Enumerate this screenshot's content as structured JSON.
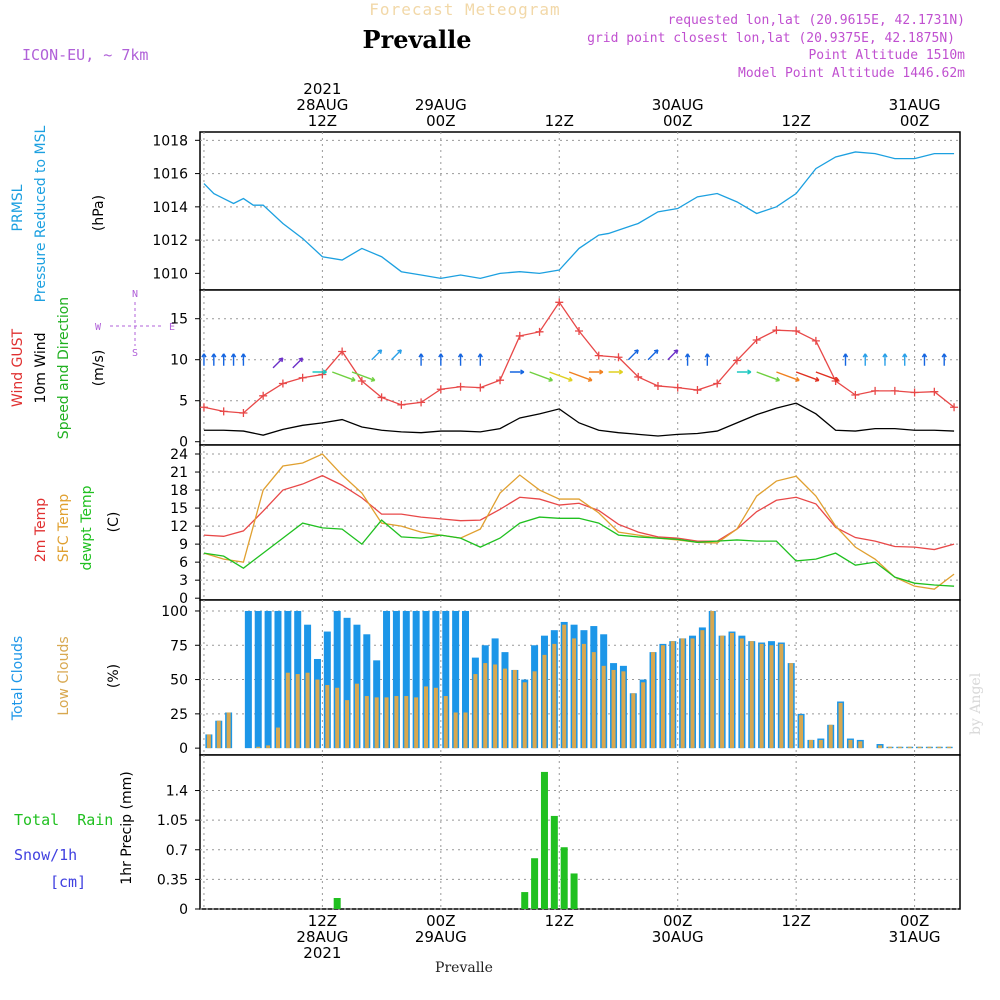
{
  "header": {
    "top_title": "Forecast Meteogram",
    "location": "Prevalle",
    "model": "ICON-EU, ~ 7km",
    "requested": "requested lon,lat (20.9615E, 42.1731N)",
    "grid_point": "grid point closest lon,lat (20.9375E, 42.1875N)",
    "point_alt": "Point Altitude 1510m",
    "model_alt": "Model Point Altitude 1446.62m",
    "footer_location": "Prevalle",
    "watermark": "by Angel"
  },
  "time_axis": {
    "top_labels": [
      {
        "h": 12,
        "lines": [
          "2021",
          "28AUG",
          "12Z"
        ]
      },
      {
        "h": 24,
        "lines": [
          "29AUG",
          "00Z"
        ]
      },
      {
        "h": 36,
        "lines": [
          "12Z"
        ]
      },
      {
        "h": 48,
        "lines": [
          "30AUG",
          "00Z"
        ]
      },
      {
        "h": 60,
        "lines": [
          "12Z"
        ]
      },
      {
        "h": 72,
        "lines": [
          "31AUG",
          "00Z"
        ]
      }
    ],
    "bottom_labels": [
      {
        "h": 12,
        "lines": [
          "12Z",
          "28AUG",
          "2021"
        ]
      },
      {
        "h": 24,
        "lines": [
          "00Z",
          "29AUG"
        ]
      },
      {
        "h": 36,
        "lines": [
          "12Z"
        ]
      },
      {
        "h": 48,
        "lines": [
          "00Z",
          "30AUG"
        ]
      },
      {
        "h": 60,
        "lines": [
          "12Z"
        ]
      },
      {
        "h": 72,
        "lines": [
          "00Z",
          "31AUG"
        ]
      }
    ]
  },
  "panels": {
    "pressure": {
      "labels": [
        "PRMSL",
        "Pressure Reduced to MSL"
      ],
      "unit": "(hPa)",
      "colors": [
        "#1ca0e0",
        "#1ca0e0"
      ]
    },
    "wind": {
      "labels": [
        "Wind GUST",
        "10m Wind",
        "Speed and Direction"
      ],
      "unit": "(m/s)",
      "colors": [
        "#e03030",
        "#000000",
        "#20b020"
      ],
      "compass": {
        "n": "N",
        "s": "S",
        "w": "W",
        "e": "E"
      }
    },
    "temp": {
      "labels": [
        "2m Temp",
        "SFC Temp",
        "dewpt Temp"
      ],
      "unit": "(C)",
      "colors": [
        "#e03030",
        "#e0a030",
        "#20c020"
      ]
    },
    "clouds": {
      "labels": [
        "Total Clouds",
        "Low Clouds"
      ],
      "unit": "(%)",
      "colors": [
        "#1c96e8",
        "#d8a850"
      ]
    },
    "precip": {
      "labels": [
        "Total  Rain",
        "Snow/1h",
        "[cm]"
      ],
      "unit": "1hr Precip (mm)",
      "colors": [
        "#20c020",
        "#4040e0",
        "#4040e0"
      ]
    }
  },
  "chart_data": [
    {
      "type": "line",
      "title": "PRMSL Pressure Reduced to MSL",
      "ylabel": "(hPa)",
      "ylim": [
        1009,
        1018.5
      ],
      "yticks": [
        1010,
        1012,
        1014,
        1016,
        1018
      ],
      "x": [
        0,
        1,
        2,
        3,
        4,
        5,
        6,
        8,
        10,
        12,
        14,
        16,
        18,
        20,
        22,
        24,
        26,
        28,
        30,
        32,
        34,
        36,
        38,
        40,
        41,
        42,
        44,
        46,
        48,
        50,
        52,
        54,
        56,
        58,
        60,
        62,
        64,
        66,
        68,
        70,
        72,
        74,
        76
      ],
      "series": [
        {
          "name": "PRMSL",
          "values": [
            1015.4,
            1014.8,
            1014.5,
            1014.2,
            1014.5,
            1014.1,
            1014.1,
            1013,
            1012.1,
            1011,
            1010.8,
            1011.5,
            1011,
            1010.1,
            1009.9,
            1009.7,
            1009.9,
            1009.7,
            1010,
            1010.1,
            1010,
            1010.2,
            1011.5,
            1012.3,
            1012.4,
            1012.6,
            1013,
            1013.7,
            1013.9,
            1014.6,
            1014.8,
            1014.3,
            1013.6,
            1014,
            1014.8,
            1016.3,
            1017,
            1017.3,
            1017.2,
            1016.9,
            1016.9,
            1017.2,
            1017.2
          ]
        }
      ]
    },
    {
      "type": "line",
      "title": "Wind GUST / 10m Wind Speed and Direction",
      "ylabel": "(m/s)",
      "ylim": [
        0,
        18.5
      ],
      "yticks": [
        0,
        5,
        10,
        15
      ],
      "x": [
        0,
        2,
        4,
        6,
        8,
        10,
        12,
        14,
        16,
        18,
        20,
        22,
        24,
        26,
        28,
        30,
        32,
        34,
        36,
        38,
        40,
        42,
        44,
        46,
        48,
        50,
        52,
        54,
        56,
        58,
        60,
        62,
        64,
        66,
        68,
        70,
        72,
        74,
        76
      ],
      "series": [
        {
          "name": "Wind GUST",
          "values": [
            4.2,
            3.7,
            3.5,
            5.6,
            7.1,
            7.8,
            8.2,
            11,
            7.4,
            5.4,
            4.5,
            4.8,
            6.4,
            6.7,
            6.6,
            7.5,
            12.9,
            13.4,
            17,
            13.5,
            10.5,
            10.3,
            7.9,
            6.8,
            6.6,
            6.3,
            7.1,
            9.9,
            12.4,
            13.6,
            13.5,
            12.3,
            7.4,
            5.7,
            6.2,
            6.2,
            6,
            6.1,
            4.2
          ]
        },
        {
          "name": "10m Wind",
          "values": [
            1.4,
            1.4,
            1.3,
            0.8,
            1.5,
            2,
            2.3,
            2.7,
            1.8,
            1.4,
            1.2,
            1.1,
            1.3,
            1.3,
            1.2,
            1.6,
            2.9,
            3.4,
            4,
            2.3,
            1.4,
            1.1,
            0.9,
            0.7,
            0.9,
            1,
            1.3,
            2.3,
            3.3,
            4.1,
            4.7,
            3.4,
            1.4,
            1.3,
            1.6,
            1.6,
            1.4,
            1.4,
            1.3
          ]
        }
      ],
      "wind_arrows": {
        "colors": [
          "#1565e0",
          "#2aa0e8",
          "#6b2fc8",
          "#1dc8c0",
          "#70d040",
          "#e0d020",
          "#f08020",
          "#e03020"
        ],
        "points": [
          {
            "h": 0,
            "v": 10,
            "c": 0,
            "dir": "N"
          },
          {
            "h": 1,
            "v": 10,
            "c": 0,
            "dir": "N"
          },
          {
            "h": 2,
            "v": 10,
            "c": 0,
            "dir": "N"
          },
          {
            "h": 3,
            "v": 10,
            "c": 0,
            "dir": "N"
          },
          {
            "h": 4,
            "v": 10,
            "c": 0,
            "dir": "N"
          },
          {
            "h": 7,
            "v": 9,
            "c": 2,
            "dir": "NE"
          },
          {
            "h": 9,
            "v": 9,
            "c": 2,
            "dir": "NE"
          },
          {
            "h": 11,
            "v": 8.5,
            "c": 3,
            "dir": "E"
          },
          {
            "h": 13,
            "v": 8.5,
            "c": 4,
            "dir": "SE"
          },
          {
            "h": 15,
            "v": 8.5,
            "c": 4,
            "dir": "SE"
          },
          {
            "h": 17,
            "v": 10,
            "c": 1,
            "dir": "NE"
          },
          {
            "h": 19,
            "v": 10,
            "c": 1,
            "dir": "NE"
          },
          {
            "h": 22,
            "v": 10,
            "c": 0,
            "dir": "N"
          },
          {
            "h": 24,
            "v": 10,
            "c": 0,
            "dir": "N"
          },
          {
            "h": 26,
            "v": 10,
            "c": 0,
            "dir": "N"
          },
          {
            "h": 28,
            "v": 10,
            "c": 0,
            "dir": "N"
          },
          {
            "h": 31,
            "v": 8.5,
            "c": 0,
            "dir": "E"
          },
          {
            "h": 33,
            "v": 8.5,
            "c": 4,
            "dir": "SE"
          },
          {
            "h": 35,
            "v": 8.5,
            "c": 5,
            "dir": "SE"
          },
          {
            "h": 37,
            "v": 8.5,
            "c": 6,
            "dir": "SE"
          },
          {
            "h": 39,
            "v": 8.5,
            "c": 6,
            "dir": "E"
          },
          {
            "h": 41,
            "v": 8.5,
            "c": 5,
            "dir": "E"
          },
          {
            "h": 43,
            "v": 10,
            "c": 0,
            "dir": "NE"
          },
          {
            "h": 45,
            "v": 10,
            "c": 0,
            "dir": "NE"
          },
          {
            "h": 47,
            "v": 10,
            "c": 2,
            "dir": "NE"
          },
          {
            "h": 49,
            "v": 10,
            "c": 0,
            "dir": "N"
          },
          {
            "h": 51,
            "v": 10,
            "c": 0,
            "dir": "N"
          },
          {
            "h": 54,
            "v": 8.5,
            "c": 3,
            "dir": "E"
          },
          {
            "h": 56,
            "v": 8.5,
            "c": 4,
            "dir": "SE"
          },
          {
            "h": 58,
            "v": 8.5,
            "c": 6,
            "dir": "SE"
          },
          {
            "h": 60,
            "v": 8.5,
            "c": 7,
            "dir": "SE"
          },
          {
            "h": 62,
            "v": 8.5,
            "c": 7,
            "dir": "SE"
          },
          {
            "h": 65,
            "v": 10,
            "c": 0,
            "dir": "N"
          },
          {
            "h": 67,
            "v": 10,
            "c": 1,
            "dir": "N"
          },
          {
            "h": 69,
            "v": 10,
            "c": 1,
            "dir": "N"
          },
          {
            "h": 71,
            "v": 10,
            "c": 1,
            "dir": "N"
          },
          {
            "h": 73,
            "v": 10,
            "c": 0,
            "dir": "N"
          },
          {
            "h": 75,
            "v": 10,
            "c": 0,
            "dir": "N"
          }
        ]
      }
    },
    {
      "type": "line",
      "title": "2m Temp / SFC Temp / dewpt Temp",
      "ylabel": "(C)",
      "ylim": [
        0,
        25
      ],
      "yticks": [
        0,
        3,
        6,
        9,
        12,
        15,
        18,
        21,
        24
      ],
      "x": [
        0,
        2,
        4,
        6,
        8,
        10,
        12,
        14,
        16,
        18,
        20,
        22,
        24,
        26,
        28,
        30,
        32,
        34,
        36,
        38,
        40,
        42,
        44,
        46,
        48,
        50,
        52,
        54,
        56,
        58,
        60,
        62,
        64,
        66,
        68,
        70,
        72,
        74,
        76
      ],
      "series": [
        {
          "name": "2m Temp",
          "values": [
            10.5,
            10.3,
            11.2,
            14.5,
            18,
            19,
            20.4,
            18.8,
            16.7,
            14,
            14,
            13.5,
            13.2,
            12.9,
            13,
            14.8,
            16.8,
            16.5,
            15.5,
            15.8,
            14.6,
            12.3,
            11,
            10.2,
            10,
            9.5,
            9.5,
            11.5,
            14.4,
            16.3,
            16.8,
            15.7,
            11.8,
            10.1,
            9.5,
            8.6,
            8.5,
            8.1,
            9
          ]
        },
        {
          "name": "SFC Temp",
          "values": [
            7.5,
            6.5,
            6,
            18,
            22,
            22.5,
            24,
            20.5,
            17.5,
            12.5,
            12,
            11,
            10.5,
            10,
            11.5,
            17.5,
            20.5,
            18,
            16.5,
            16.5,
            14.2,
            11,
            10.5,
            10,
            9.7,
            9.3,
            9.2,
            11.5,
            17,
            19.5,
            20.3,
            17,
            12,
            8.5,
            6.5,
            3.5,
            2,
            1.5,
            4
          ]
        },
        {
          "name": "dewpt Temp",
          "values": [
            7.5,
            7,
            5,
            7.5,
            10,
            12.5,
            11.7,
            11.5,
            9,
            13,
            10.2,
            10,
            10.5,
            10,
            8.5,
            10,
            12.5,
            13.5,
            13.3,
            13.3,
            12.5,
            10.5,
            10.2,
            10,
            9.8,
            9.3,
            9.5,
            9.7,
            9.5,
            9.5,
            6.2,
            6.5,
            7.5,
            5.5,
            6,
            3.5,
            2.5,
            2.2,
            2
          ]
        }
      ]
    },
    {
      "type": "bar",
      "title": "Total Clouds / Low Clouds",
      "ylabel": "(%)",
      "ylim": [
        0,
        105
      ],
      "yticks": [
        0,
        25,
        50,
        75,
        100
      ],
      "x": [
        0,
        1,
        2,
        3,
        4,
        5,
        6,
        7,
        8,
        9,
        10,
        11,
        12,
        13,
        14,
        15,
        16,
        17,
        18,
        19,
        20,
        21,
        22,
        23,
        24,
        25,
        26,
        27,
        28,
        29,
        30,
        31,
        32,
        33,
        34,
        35,
        36,
        37,
        38,
        39,
        40,
        41,
        42,
        43,
        44,
        45,
        46,
        47,
        48,
        49,
        50,
        51,
        52,
        53,
        54,
        55,
        56,
        57,
        58,
        59,
        60,
        61,
        62,
        63,
        64,
        65,
        66,
        67,
        68,
        69,
        70,
        71,
        72,
        73,
        74,
        75
      ],
      "series": [
        {
          "name": "Total Clouds",
          "values": [
            10,
            20,
            26,
            0,
            100,
            100,
            100,
            100,
            100,
            100,
            90,
            65,
            85,
            100,
            95,
            90,
            83,
            64,
            100,
            100,
            100,
            100,
            100,
            100,
            100,
            100,
            100,
            66,
            75,
            80,
            70,
            57,
            50,
            75,
            82,
            86,
            92,
            90,
            86,
            89,
            83,
            62,
            60,
            40,
            50,
            70,
            76,
            78,
            80,
            82,
            88,
            100,
            82,
            85,
            82,
            78,
            77,
            78,
            77,
            62,
            25,
            6,
            7,
            17,
            34,
            7,
            6,
            0,
            3,
            1,
            1,
            1,
            1,
            1,
            1,
            1
          ],
          "note": ""
        },
        {
          "name": "Low Clouds",
          "values": [
            10,
            20,
            26,
            0,
            0,
            1,
            2,
            15,
            55,
            54,
            55,
            50,
            46,
            44,
            35,
            47,
            38,
            37,
            37,
            38,
            38,
            37,
            45,
            44,
            38,
            26,
            26,
            54,
            62,
            61,
            58,
            57,
            48,
            56,
            68,
            76,
            90,
            80,
            76,
            70,
            60,
            57,
            56,
            40,
            48,
            70,
            75,
            78,
            80,
            80,
            86,
            100,
            82,
            84,
            80,
            78,
            76,
            75,
            76,
            62,
            24,
            6,
            6,
            17,
            33,
            6,
            5,
            0,
            2,
            1,
            1,
            1,
            1,
            1,
            1,
            1
          ]
        }
      ]
    },
    {
      "type": "bar",
      "title": "1hr Precip (mm)",
      "ylabel": "1hr Precip (mm)",
      "ylim": [
        0,
        1.82
      ],
      "yticks": [
        0,
        0.35,
        0.7,
        1.05,
        1.4
      ],
      "ytick_labels": [
        "0",
        "0.35",
        "0.7",
        "1.05",
        "1.4"
      ],
      "x": [
        13,
        32,
        33,
        34,
        35,
        36,
        37,
        38
      ],
      "series": [
        {
          "name": "Total  Rain",
          "values": [
            0.13,
            0.2,
            0.6,
            1.62,
            1.1,
            0.73,
            0.42,
            0
          ]
        }
      ]
    }
  ]
}
